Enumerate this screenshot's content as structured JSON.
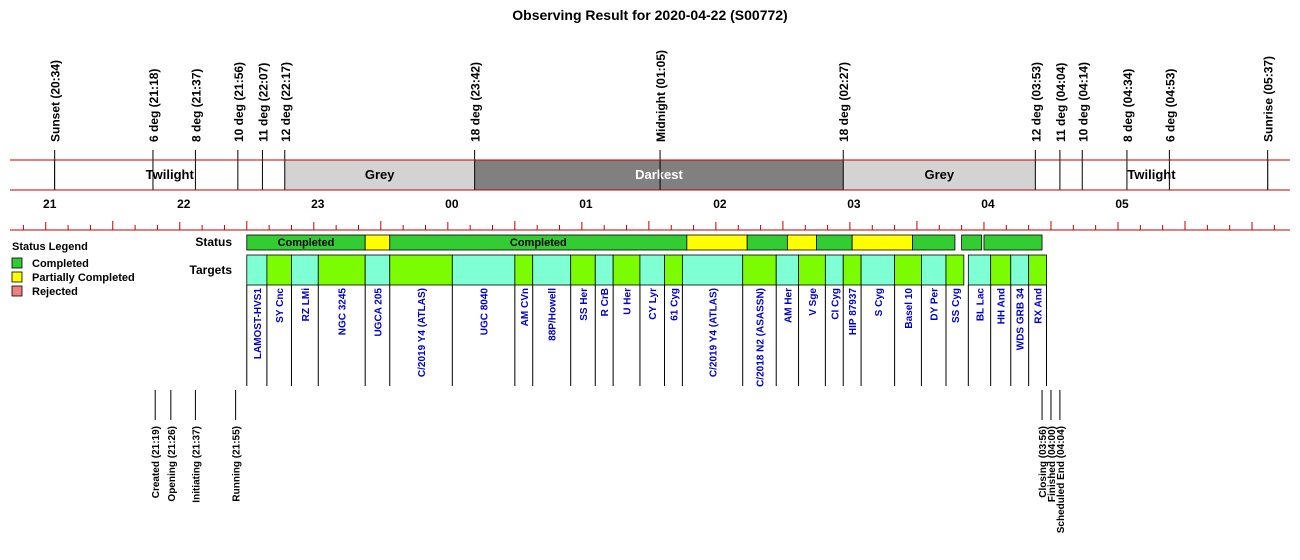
{
  "title": "Observing Result for 2020-04-22 (S00772)",
  "chart_data": {
    "type": "timeline",
    "title": "Observing Result for 2020-04-22 (S00772)",
    "x_range": [
      "20:14",
      "05:47"
    ],
    "hour_ticks": [
      "21",
      "22",
      "23",
      "00",
      "01",
      "02",
      "03",
      "04",
      "05"
    ],
    "sky_events": [
      {
        "label": "Sunset (20:34)",
        "time": "20:34"
      },
      {
        "label": "6 deg (21:18)",
        "time": "21:18"
      },
      {
        "label": "8 deg (21:37)",
        "time": "21:37"
      },
      {
        "label": "10 deg (21:56)",
        "time": "21:56"
      },
      {
        "label": "11 deg (22:07)",
        "time": "22:07"
      },
      {
        "label": "12 deg (22:17)",
        "time": "22:17"
      },
      {
        "label": "18 deg (23:42)",
        "time": "23:42"
      },
      {
        "label": "Midnight (01:05)",
        "time": "01:05"
      },
      {
        "label": "18 deg (02:27)",
        "time": "02:27"
      },
      {
        "label": "12 deg (03:53)",
        "time": "03:53"
      },
      {
        "label": "11 deg (04:04)",
        "time": "04:04"
      },
      {
        "label": "10 deg (04:14)",
        "time": "04:14"
      },
      {
        "label": "8 deg (04:34)",
        "time": "04:34"
      },
      {
        "label": "6 deg (04:53)",
        "time": "04:53"
      },
      {
        "label": "Sunrise (05:37)",
        "time": "05:37"
      }
    ],
    "sky_periods": [
      {
        "label": "Twilight",
        "start": "20:34",
        "end": "22:17",
        "color": "#ffffff",
        "text_color": "#000000"
      },
      {
        "label": "Grey",
        "start": "22:17",
        "end": "23:42",
        "color": "#d3d3d3",
        "text_color": "#000000"
      },
      {
        "label": "Darkest",
        "start": "23:42",
        "end": "02:27",
        "color": "#808080",
        "text_color": "#ffffff"
      },
      {
        "label": "Grey",
        "start": "02:27",
        "end": "03:53",
        "color": "#d3d3d3",
        "text_color": "#000000"
      },
      {
        "label": "Twilight",
        "start": "03:53",
        "end": "05:37",
        "color": "#ffffff",
        "text_color": "#000000"
      }
    ],
    "row_labels": {
      "status": "Status",
      "targets": "Targets"
    },
    "status_colors": {
      "completed": "#33cc33",
      "partial": "#ffff00",
      "rejected": "#f08080"
    },
    "status_segments": [
      {
        "start": "22:00",
        "end": "22:53",
        "status": "completed",
        "label": "Completed"
      },
      {
        "start": "22:53",
        "end": "23:04",
        "status": "partial",
        "label": ""
      },
      {
        "start": "23:04",
        "end": "01:17",
        "status": "completed",
        "label": "Completed"
      },
      {
        "start": "01:17",
        "end": "01:44",
        "status": "partial",
        "label": ""
      },
      {
        "start": "01:44",
        "end": "02:02",
        "status": "completed",
        "label": ""
      },
      {
        "start": "02:02",
        "end": "02:15",
        "status": "partial",
        "label": ""
      },
      {
        "start": "02:15",
        "end": "02:31",
        "status": "completed",
        "label": ""
      },
      {
        "start": "02:31",
        "end": "02:58",
        "status": "partial",
        "label": ""
      },
      {
        "start": "02:58",
        "end": "03:17",
        "status": "completed",
        "label": ""
      },
      {
        "start": "03:20",
        "end": "03:29",
        "status": "completed",
        "label": ""
      },
      {
        "start": "03:30",
        "end": "03:56",
        "status": "completed",
        "label": ""
      }
    ],
    "target_colors": {
      "a": "#7fffd4",
      "b": "#7cfc00"
    },
    "targets": [
      {
        "name": "LAMOST-HVS1",
        "start": "22:00",
        "end": "22:09",
        "shade": "a"
      },
      {
        "name": "SY Cnc",
        "start": "22:09",
        "end": "22:20",
        "shade": "b"
      },
      {
        "name": "RZ LMi",
        "start": "22:20",
        "end": "22:32",
        "shade": "a"
      },
      {
        "name": "NGC 3245",
        "start": "22:32",
        "end": "22:53",
        "shade": "b"
      },
      {
        "name": "UGCA 205",
        "start": "22:53",
        "end": "23:04",
        "shade": "a"
      },
      {
        "name": "C/2019 Y4 (ATLAS)",
        "start": "23:04",
        "end": "23:32",
        "shade": "b"
      },
      {
        "name": "UGC 8040",
        "start": "23:32",
        "end": "24:00",
        "shade": "a"
      },
      {
        "name": "AM CVn",
        "start": "24:00",
        "end": "24:08",
        "shade": "b"
      },
      {
        "name": "88P/Howell",
        "start": "24:08",
        "end": "24:25",
        "shade": "a"
      },
      {
        "name": "SS Her",
        "start": "24:25",
        "end": "24:36",
        "shade": "b"
      },
      {
        "name": "R CrB",
        "start": "24:36",
        "end": "24:44",
        "shade": "a"
      },
      {
        "name": "U Her",
        "start": "24:44",
        "end": "24:56",
        "shade": "b"
      },
      {
        "name": "CY Lyr",
        "start": "24:56",
        "end": "25:07",
        "shade": "a"
      },
      {
        "name": "61 Cyg",
        "start": "25:07",
        "end": "25:15",
        "shade": "b"
      },
      {
        "name": "C/2019 Y4 (ATLAS)",
        "start": "25:15",
        "end": "25:42",
        "shade": "a"
      },
      {
        "name": "C/2018 N2 (ASASSN)",
        "start": "25:42",
        "end": "25:57",
        "shade": "b"
      },
      {
        "name": "AM Her",
        "start": "25:57",
        "end": "26:07",
        "shade": "a"
      },
      {
        "name": "V Sge",
        "start": "26:07",
        "end": "26:19",
        "shade": "b"
      },
      {
        "name": "CI Cyg",
        "start": "26:19",
        "end": "26:27",
        "shade": "a"
      },
      {
        "name": "HIP 87937",
        "start": "26:27",
        "end": "26:35",
        "shade": "b"
      },
      {
        "name": "S Cyg",
        "start": "26:35",
        "end": "26:50",
        "shade": "a"
      },
      {
        "name": "Basel 10",
        "start": "26:50",
        "end": "27:02",
        "shade": "b"
      },
      {
        "name": "DY Per",
        "start": "27:02",
        "end": "27:13",
        "shade": "a"
      },
      {
        "name": "SS Cyg",
        "start": "27:13",
        "end": "27:21",
        "shade": "b"
      },
      {
        "name": "BL Lac",
        "start": "27:23",
        "end": "27:33",
        "shade": "a"
      },
      {
        "name": "HH And",
        "start": "27:33",
        "end": "27:42",
        "shade": "b"
      },
      {
        "name": "WDS GRB 34",
        "start": "27:42",
        "end": "27:50",
        "shade": "a"
      },
      {
        "name": "RX And",
        "start": "27:50",
        "end": "27:58",
        "shade": "b"
      }
    ],
    "process_events": [
      {
        "label": "Created (21:19)",
        "time": "21:19"
      },
      {
        "label": "Opening (21:26)",
        "time": "21:26"
      },
      {
        "label": "Initiating (21:37)",
        "time": "21:37"
      },
      {
        "label": "Running (21:55)",
        "time": "21:55"
      },
      {
        "label": "Closing (03:56)",
        "time": "03:56"
      },
      {
        "label": "Finished (04:00)",
        "time": "04:00"
      },
      {
        "label": "Scheduled End (04:04)",
        "time": "04:04"
      }
    ],
    "legend": {
      "title": "Status Legend",
      "position": "left",
      "items": [
        {
          "label": "Completed",
          "color": "#33cc33"
        },
        {
          "label": "Partially Completed",
          "color": "#ffff00"
        },
        {
          "label": "Rejected",
          "color": "#f08080"
        }
      ]
    }
  }
}
